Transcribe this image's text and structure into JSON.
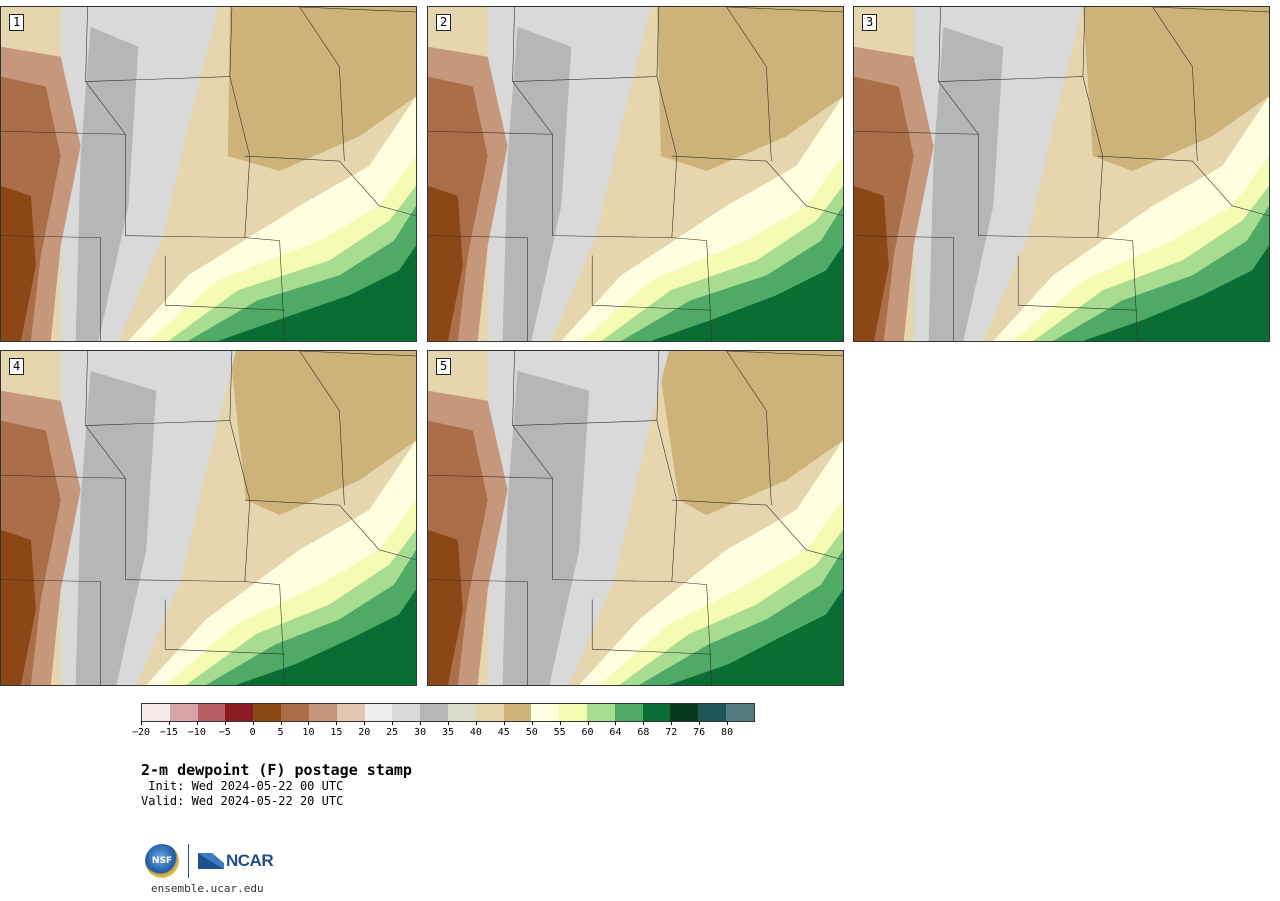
{
  "title": "2-m dewpoint (F) postage stamp",
  "init_label": " Init: Wed 2024-05-22 00 UTC",
  "valid_label": "Valid: Wed 2024-05-22 20 UTC",
  "website": "ensemble.ucar.edu",
  "logo": {
    "nsf": "NSF",
    "ncar": "NCAR"
  },
  "panels": [
    {
      "label": "1"
    },
    {
      "label": "2"
    },
    {
      "label": "3"
    },
    {
      "label": "4"
    },
    {
      "label": "5"
    }
  ],
  "colorbar": {
    "colors": [
      "#f6eaea",
      "#d9a2a6",
      "#b75e64",
      "#8a1b22",
      "#8c4716",
      "#aa6f48",
      "#c7977c",
      "#e3c7b5",
      "#eeeeee",
      "#d9d9d9",
      "#b6b6b6",
      "#dcdccb",
      "#e5d6ad",
      "#cdb37a",
      "#ffffe0",
      "#f6fbb4",
      "#a8dc91",
      "#4eaa65",
      "#0a6d33",
      "#05371c",
      "#1d5558",
      "#517c80"
    ],
    "ticks": [
      "−20",
      "−15",
      "−10",
      "−5",
      "0",
      "5",
      "10",
      "15",
      "20",
      "25",
      "30",
      "35",
      "40",
      "45",
      "50",
      "55",
      "60",
      "64",
      "68",
      "72",
      "76",
      "80"
    ]
  }
}
